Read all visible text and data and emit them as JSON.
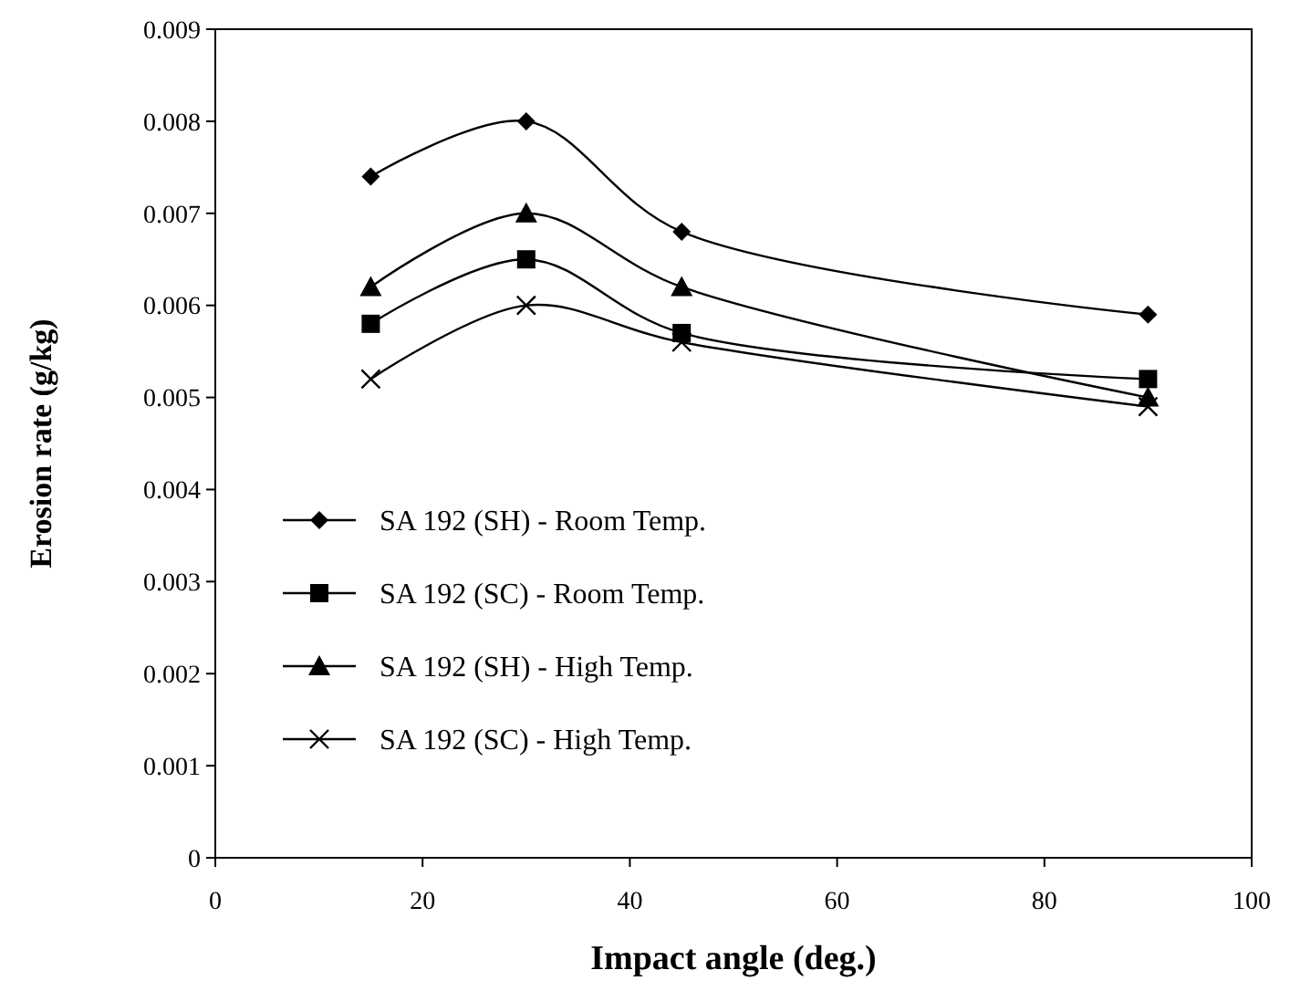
{
  "chart_data": {
    "type": "line",
    "xlabel": "Impact angle (deg.)",
    "ylabel": "Erosion rate  (g/kg)",
    "x": [
      15,
      30,
      45,
      90
    ],
    "series": [
      {
        "name": "SA 192  (SH) - Room Temp.",
        "color": "#000000",
        "marker": "diamond",
        "values": [
          0.0074,
          0.008,
          0.0068,
          0.0059
        ]
      },
      {
        "name": "SA 192  (SC) - Room Temp.",
        "color": "#000000",
        "marker": "square",
        "values": [
          0.0058,
          0.0065,
          0.0057,
          0.0052
        ]
      },
      {
        "name": "SA 192  (SH) - High Temp.",
        "color": "#000000",
        "marker": "triangle",
        "values": [
          0.0062,
          0.007,
          0.0062,
          0.005
        ]
      },
      {
        "name": "SA 192  (SC) - High Temp.",
        "color": "#000000",
        "marker": "cross",
        "values": [
          0.0052,
          0.006,
          0.0056,
          0.0049
        ]
      }
    ],
    "xlim": [
      0,
      100
    ],
    "xticks": [
      0,
      20,
      40,
      60,
      80,
      100
    ],
    "ylim": [
      0,
      0.009
    ],
    "yticks": [
      0,
      0.001,
      0.002,
      0.003,
      0.004,
      0.005,
      0.006,
      0.007,
      0.008,
      0.009
    ],
    "grid": false,
    "legend": "left",
    "line_style": "solid"
  }
}
